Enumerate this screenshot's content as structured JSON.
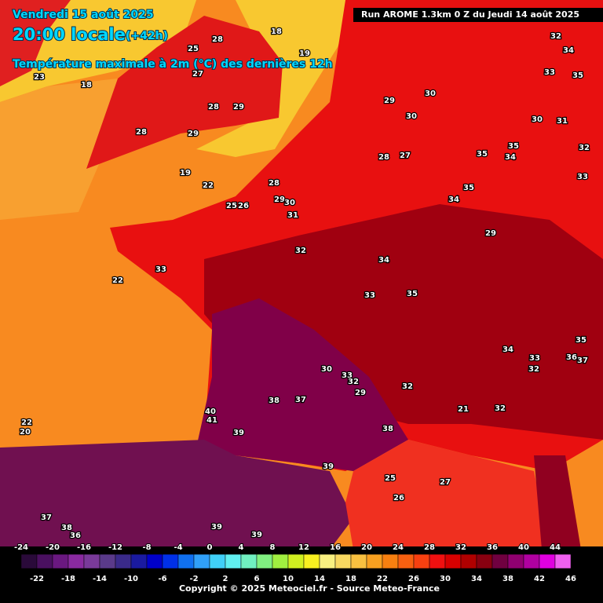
{
  "header": {
    "date": "Vendredi 15 août 2025",
    "time": "20:00 locale",
    "lead": "(+42h)",
    "title": "Température maximale à 2m (°C) des dernières 12h",
    "run": "Run AROME 1.3km 0 Z du Jeudi 14 août 2025"
  },
  "map_labels": [
    28,
    18,
    19,
    25,
    27,
    18,
    23,
    28,
    29,
    28,
    29,
    19,
    22,
    28,
    29,
    30,
    31,
    25,
    26,
    29,
    30,
    30,
    28,
    27,
    35,
    35,
    34,
    32,
    33,
    35,
    34,
    32,
    34,
    33,
    35,
    30,
    31,
    32,
    34,
    33,
    22,
    33,
    35,
    29,
    34,
    33,
    32,
    36,
    37,
    35,
    30,
    33,
    32,
    29,
    32,
    38,
    37,
    40,
    41,
    39,
    38,
    39,
    25,
    27,
    26,
    22,
    20,
    37,
    38,
    36,
    39,
    39,
    32,
    21
  ],
  "scale": {
    "top": [
      -24,
      -20,
      -16,
      -12,
      -8,
      -4,
      0,
      4,
      8,
      12,
      16,
      20,
      24,
      28,
      32,
      36,
      40,
      44
    ],
    "bottom": [
      -22,
      -18,
      -14,
      -10,
      -6,
      -2,
      2,
      6,
      10,
      14,
      18,
      22,
      26,
      30,
      34,
      38,
      42,
      46
    ],
    "colors": [
      "#2a0a3a",
      "#4a1060",
      "#6a1880",
      "#8a2aa0",
      "#7a3a9a",
      "#5a3a8a",
      "#3a2a8a",
      "#1a1aa0",
      "#0000c8",
      "#0030e8",
      "#1070f0",
      "#30a0f8",
      "#40d0f8",
      "#60f0f0",
      "#70f0c0",
      "#80f080",
      "#a0f040",
      "#d0f020",
      "#f8f020",
      "#f8f080",
      "#f8d860",
      "#f8c040",
      "#f8a020",
      "#f88010",
      "#f86010",
      "#f84010",
      "#f01010",
      "#d80000",
      "#b00000",
      "#880010",
      "#700040",
      "#900070",
      "#b000a0",
      "#e000e0",
      "#f060f0"
    ]
  },
  "footer": "Copyright © 2025 Meteociel.fr - Source Meteo-France"
}
